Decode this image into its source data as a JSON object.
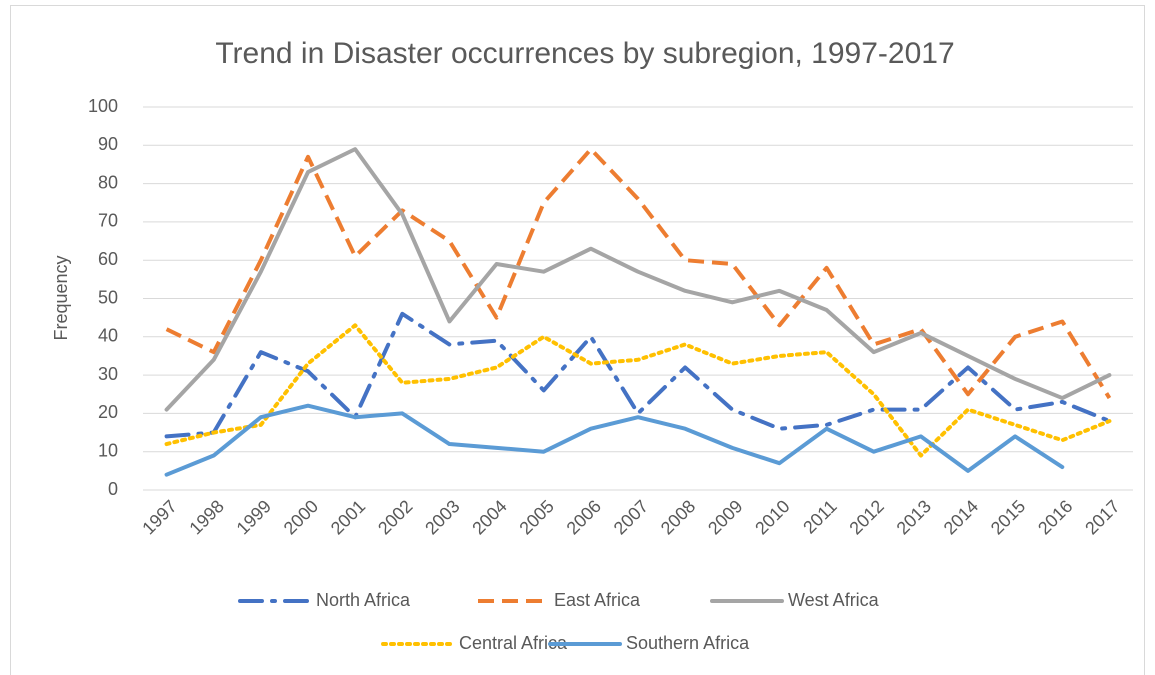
{
  "chart_data": {
    "type": "line",
    "title": "Trend in Disaster occurrences by subregion, 1997-2017",
    "y_label": "Frequency",
    "categories": [
      "1997",
      "1998",
      "1999",
      "2000",
      "2001",
      "2002",
      "2003",
      "2004",
      "2005",
      "2006",
      "2007",
      "2008",
      "2009",
      "2010",
      "2011",
      "2012",
      "2013",
      "2014",
      "2015",
      "2016",
      "2017"
    ],
    "series": [
      {
        "name": "North Africa",
        "color": "#4472c4",
        "dash": "dashdot",
        "values": [
          14,
          15,
          36,
          31,
          19,
          46,
          38,
          39,
          26,
          40,
          20,
          32,
          21,
          16,
          17,
          21,
          21,
          32,
          21,
          23,
          18
        ]
      },
      {
        "name": "East Africa",
        "color": "#ed7d31",
        "dash": "dashed",
        "values": [
          42,
          36,
          60,
          87,
          61,
          73,
          65,
          45,
          75,
          89,
          76,
          60,
          59,
          43,
          58,
          38,
          42,
          25,
          40,
          44,
          24
        ]
      },
      {
        "name": "West Africa",
        "color": "#a5a5a5",
        "dash": "solid",
        "values": [
          21,
          34,
          57,
          83,
          89,
          72,
          44,
          59,
          57,
          63,
          57,
          52,
          49,
          52,
          47,
          36,
          41,
          35,
          29,
          24,
          30
        ]
      },
      {
        "name": "Central Africa",
        "color": "#ffc000",
        "dash": "dotted",
        "values": [
          12,
          15,
          17,
          33,
          43,
          28,
          29,
          32,
          40,
          33,
          34,
          38,
          33,
          35,
          36,
          25,
          9,
          21,
          17,
          13,
          18
        ]
      },
      {
        "name": "Southern Africa",
        "color": "#5b9bd5",
        "dash": "solid",
        "values": [
          4,
          9,
          19,
          22,
          19,
          20,
          12,
          11,
          10,
          16,
          19,
          16,
          11,
          7,
          16,
          10,
          14,
          5,
          14,
          6,
          null
        ]
      }
    ],
    "ylim": [
      0,
      100
    ],
    "yticks": [
      0,
      10,
      20,
      30,
      40,
      50,
      60,
      70,
      80,
      90,
      100
    ],
    "grid": true
  }
}
